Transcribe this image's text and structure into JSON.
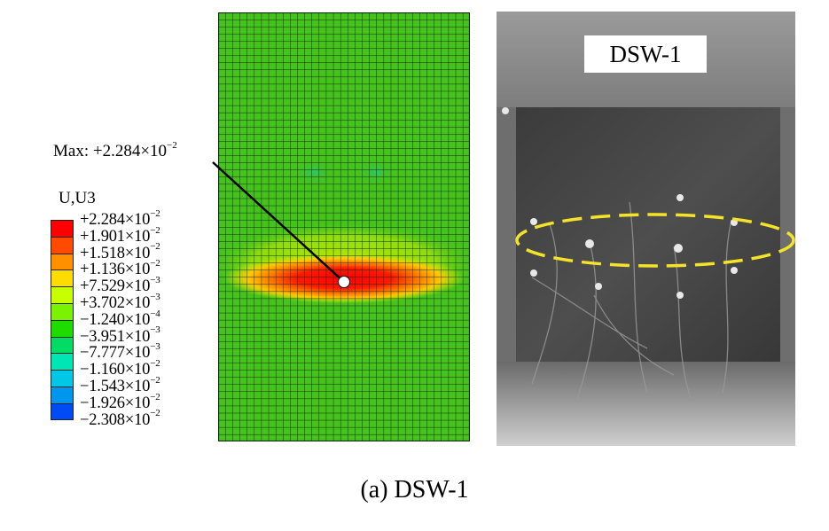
{
  "figure": {
    "caption": "(a) DSW-1",
    "specimen_label": "DSW-1"
  },
  "legend": {
    "title": "U,U3",
    "entries": [
      {
        "mantissa": "+2.284",
        "exponent": "−2",
        "color": "#ff0000"
      },
      {
        "mantissa": "+1.901",
        "exponent": "−2",
        "color": "#ff4a00"
      },
      {
        "mantissa": "+1.518",
        "exponent": "−2",
        "color": "#ff9100"
      },
      {
        "mantissa": "+1.136",
        "exponent": "−2",
        "color": "#ffdc00"
      },
      {
        "mantissa": "+7.529",
        "exponent": "−3",
        "color": "#c8ff00"
      },
      {
        "mantissa": "+3.702",
        "exponent": "−3",
        "color": "#7bf200"
      },
      {
        "mantissa": "−1.240",
        "exponent": "−4",
        "color": "#1edc00"
      },
      {
        "mantissa": "−3.951",
        "exponent": "−3",
        "color": "#00dc64"
      },
      {
        "mantissa": "−7.777",
        "exponent": "−3",
        "color": "#00e6b4"
      },
      {
        "mantissa": "−1.160",
        "exponent": "−2",
        "color": "#00c8e6"
      },
      {
        "mantissa": "−1.543",
        "exponent": "−2",
        "color": "#0096f0"
      },
      {
        "mantissa": "−1.926",
        "exponent": "−2",
        "color": "#004bf5"
      },
      {
        "mantissa": "−2.308",
        "exponent": "−2",
        "color": "#0000ff"
      }
    ]
  },
  "max_annotation": {
    "prefix": "Max: ",
    "mantissa": "+2.284",
    "exponent": "−2"
  },
  "colors": {
    "mesh_base": "#46c21e",
    "mesh_line": "#0d2a05",
    "highlight_ellipse": "#f5e32a"
  }
}
